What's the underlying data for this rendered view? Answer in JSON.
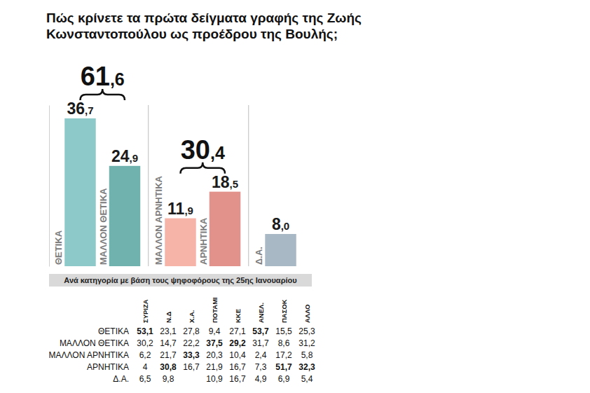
{
  "chart_data": {
    "type": "bar",
    "title": "Πώς κρίνετε τα πρώτα δείγματα γραφής της Ζωής Κωνσταντοπούλου ως προέδρου της Βουλής;",
    "categories": [
      "ΘΕΤΙΚΑ",
      "ΜΑΛΛΟΝ ΘΕΤΙΚΑ",
      "ΜΑΛΛΟΝ ΑΡΝΗΤΙΚΑ",
      "ΑΡΝΗΤΙΚΑ",
      "Δ.Α."
    ],
    "values": [
      36.7,
      24.9,
      11.9,
      18.5,
      8.0
    ],
    "value_labels": [
      "36,7",
      "24,9",
      "11,9",
      "18,5",
      "8,0"
    ],
    "colors": [
      "#8dc9c9",
      "#6fb2ae",
      "#f6b3a8",
      "#e3918b",
      "#a8b8c4"
    ],
    "ylim": [
      0,
      40
    ],
    "yticks": [],
    "grid": false,
    "data_labels": true,
    "tick_labels": "x",
    "groups": [
      {
        "value": 61.6,
        "label": "61,6",
        "categories": [
          "ΘΕΤΙΚΑ",
          "ΜΑΛΛΟΝ ΘΕΤΙΚΑ"
        ]
      },
      {
        "value": 30.4,
        "label": "30,4",
        "categories": [
          "ΜΑΛΛΟΝ ΑΡΝΗΤΙΚΑ",
          "ΑΡΝΗΤΙΚΑ"
        ]
      }
    ]
  },
  "table": {
    "title": "Ανά κατηγορία με βάση τους ψηφοφόρους της 25ης Ιανουαρίου",
    "columns": [
      "ΣΥΡΙΖΑ",
      "Ν.Δ",
      "Χ.Α.",
      "ΠΟΤΑΜΙ",
      "ΚΚΕ",
      "ΑΝΕΛ.",
      "ΠΑΣΟΚ",
      "ΑΛΛΟ"
    ],
    "rows": [
      {
        "label": "ΘΕΤΙΚΑ",
        "cells": [
          "53,1",
          "23,1",
          "27,8",
          "9,4",
          "27,1",
          "53,7",
          "15,5",
          "25,3"
        ]
      },
      {
        "label": "ΜΑΛΛΟΝ ΘΕΤΙΚΑ",
        "cells": [
          "30,2",
          "14,7",
          "22,2",
          "37,5",
          "29,2",
          "31,7",
          "8,6",
          "31,2"
        ]
      },
      {
        "label": "ΜΑΛΛΟΝ ΑΡΝΗΤΙΚΑ",
        "cells": [
          "6,2",
          "21,7",
          "33,3",
          "20,3",
          "10,4",
          "2,4",
          "17,2",
          "5,8"
        ]
      },
      {
        "label": "ΑΡΝΗΤΙΚΑ",
        "cells": [
          "4",
          "30,8",
          "16,7",
          "21,9",
          "16,7",
          "7,3",
          "51,7",
          "32,3"
        ]
      },
      {
        "label": "Δ.Α.",
        "cells": [
          "6,5",
          "9,8",
          null,
          "10,9",
          "16,7",
          "4,9",
          "6,9",
          "5,4"
        ]
      }
    ]
  }
}
